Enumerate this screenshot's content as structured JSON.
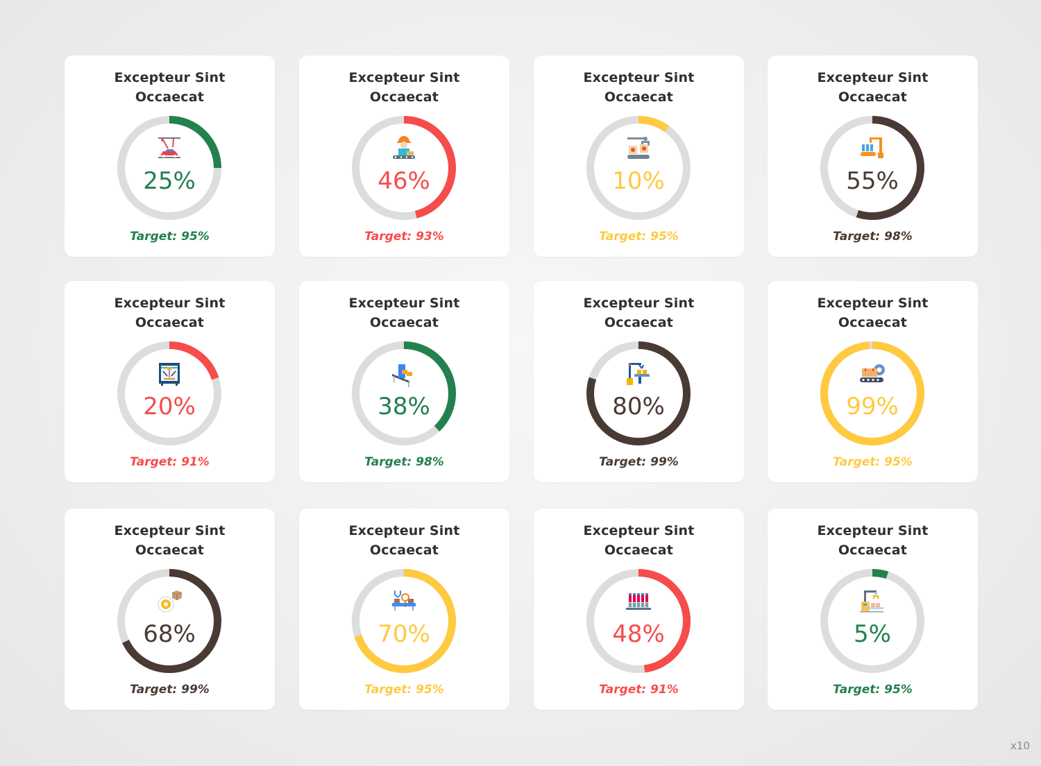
{
  "colors": {
    "green": "#23804f",
    "red": "#f64c4c",
    "yellow": "#ffc940",
    "brown": "#4a3a34",
    "track": "#dddddd",
    "title": "#2f2f2f"
  },
  "scale_label": "x10",
  "chart_data": {
    "type": "gauge-grid",
    "title": "",
    "unit": "%",
    "range": [
      0,
      100
    ],
    "items": [
      {
        "title_line1": "Excepteur Sint",
        "title_line2": "Occaecat",
        "value": 25,
        "value_label": "25%",
        "target": 95,
        "target_label": "Target: 95%",
        "color": "green",
        "icon": "car-paint-robot-icon"
      },
      {
        "title_line1": "Excepteur Sint",
        "title_line2": "Occaecat",
        "value": 46,
        "value_label": "46%",
        "target": 93,
        "target_label": "Target: 93%",
        "color": "red",
        "icon": "conveyor-worker-icon"
      },
      {
        "title_line1": "Excepteur Sint",
        "title_line2": "Occaecat",
        "value": 10,
        "value_label": "10%",
        "target": 95,
        "target_label": "Target: 95%",
        "color": "yellow",
        "icon": "packing-crane-icon"
      },
      {
        "title_line1": "Excepteur Sint",
        "title_line2": "Occaecat",
        "value": 55,
        "value_label": "55%",
        "target": 98,
        "target_label": "Target: 98%",
        "color": "brown",
        "icon": "robot-arm-bottles-icon"
      },
      {
        "title_line1": "Excepteur Sint",
        "title_line2": "Occaecat",
        "value": 20,
        "value_label": "20%",
        "target": 91,
        "target_label": "Target: 91%",
        "color": "red",
        "icon": "3d-printer-icon"
      },
      {
        "title_line1": "Excepteur Sint",
        "title_line2": "Occaecat",
        "value": 38,
        "value_label": "38%",
        "target": 98,
        "target_label": "Target: 98%",
        "color": "green",
        "icon": "scanner-conveyor-icon"
      },
      {
        "title_line1": "Excepteur Sint",
        "title_line2": "Occaecat",
        "value": 80,
        "value_label": "80%",
        "target": 99,
        "target_label": "Target: 99%",
        "color": "brown",
        "icon": "robot-arm-conveyor-icon"
      },
      {
        "title_line1": "Excepteur Sint",
        "title_line2": "Occaecat",
        "value": 99,
        "value_label": "99%",
        "target": 95,
        "target_label": "Target: 95%",
        "color": "yellow",
        "icon": "conveyor-gear-icon"
      },
      {
        "title_line1": "Excepteur Sint",
        "title_line2": "Occaecat",
        "value": 68,
        "value_label": "68%",
        "target": 99,
        "target_label": "Target: 99%",
        "color": "brown",
        "icon": "gear-box-icon"
      },
      {
        "title_line1": "Excepteur Sint",
        "title_line2": "Occaecat",
        "value": 70,
        "value_label": "70%",
        "target": 95,
        "target_label": "Target: 95%",
        "color": "yellow",
        "icon": "quality-inspection-icon"
      },
      {
        "title_line1": "Excepteur Sint",
        "title_line2": "Occaecat",
        "value": 48,
        "value_label": "48%",
        "target": 91,
        "target_label": "Target: 91%",
        "color": "red",
        "icon": "bottle-filling-icon"
      },
      {
        "title_line1": "Excepteur Sint",
        "title_line2": "Occaecat",
        "value": 5,
        "value_label": "5%",
        "target": 95,
        "target_label": "Target: 95%",
        "color": "green",
        "icon": "robot-packaging-icon"
      }
    ]
  }
}
